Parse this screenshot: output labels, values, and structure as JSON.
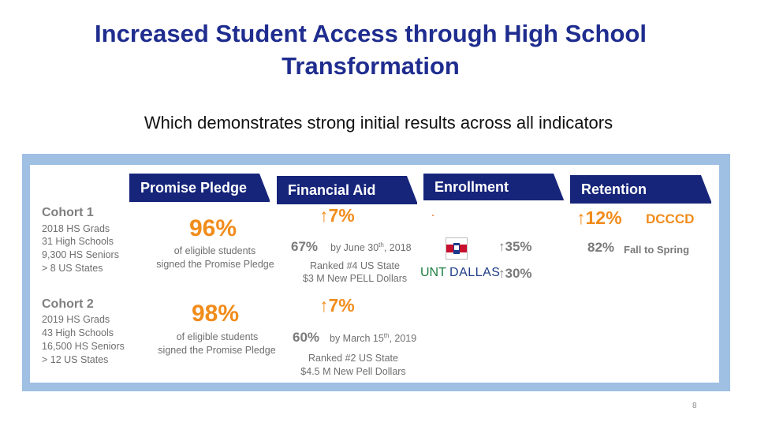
{
  "title_line1": "Increased Student Access through High School",
  "title_line2": "Transformation",
  "subtitle": "Which demonstrates strong initial results across all indicators",
  "headers": [
    "Promise Pledge",
    "Financial Aid",
    "Enrollment",
    "Retention"
  ],
  "cohort1": {
    "title": "Cohort 1",
    "lines": [
      "2018 HS Grads",
      "31 High Schools",
      "9,300 HS Seniors",
      "> 8 US States"
    ],
    "pledge_pct": "96%",
    "pledge_text1": "of eligible students",
    "pledge_text2": "signed the Promise Pledge",
    "aid_up": "7%",
    "aid_pct": "67%",
    "aid_date": "by June 30",
    "aid_date_sup": "th",
    "aid_year": ", 2018",
    "aid_rank": "Ranked #4 US State",
    "aid_dollars": "$3 M New PELL Dollars",
    "enroll_dccc": "35%",
    "enroll_unt": "30%",
    "unt_a": "UNT",
    "unt_b": "DALLAS",
    "ret_up": "12%",
    "ret_org": "DCCCD",
    "ret_pct": "82%",
    "ret_text": "Fall to Spring"
  },
  "cohort2": {
    "title": "Cohort 2",
    "lines": [
      "2019 HS Grads",
      "43 High Schools",
      "16,500 HS Seniors",
      "> 12 US States"
    ],
    "pledge_pct": "98%",
    "pledge_text1": "of eligible students",
    "pledge_text2": "signed the Promise Pledge",
    "aid_up": "7%",
    "aid_pct": "60%",
    "aid_date": "by March 15",
    "aid_date_sup": "th",
    "aid_year": ", 2019",
    "aid_rank": "Ranked #2 US State",
    "aid_dollars": "$4.5 M New Pell Dollars"
  },
  "arrow": "↑",
  "page_number": "8",
  "colors": {
    "title": "#1f2d8f",
    "header": "#16257a",
    "orange": "#f18c1b",
    "frame": "#9fbfe3"
  }
}
